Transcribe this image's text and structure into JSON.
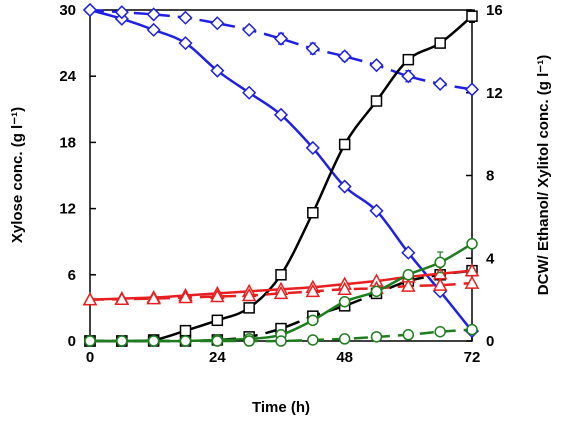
{
  "chart_data": {
    "type": "line",
    "xlabel": "Time (h)",
    "ylabel_left": "Xylose conc. (g l⁻¹)",
    "ylabel_right": "DCW/ Ethanol/ Xylitol conc. (g l⁻¹)",
    "xlim": [
      0,
      72
    ],
    "ylim_left": [
      0,
      30
    ],
    "ylim_right": [
      0,
      16
    ],
    "x_ticks": [
      "0",
      "24",
      "48",
      "72"
    ],
    "y_left_ticks": [
      "0",
      "6",
      "12",
      "18",
      "24",
      "30"
    ],
    "y_right_ticks": [
      "0",
      "4",
      "8",
      "12",
      "16"
    ],
    "grid": false,
    "series": [
      {
        "axis": "left",
        "marker": "diamond",
        "color": "#1f1fe6",
        "dash": "solid",
        "x": [
          0,
          6,
          12,
          18,
          24,
          30,
          36,
          42,
          48,
          54,
          60,
          66,
          72
        ],
        "y": [
          30,
          29.2,
          28.2,
          27,
          24.5,
          22.5,
          20.5,
          17.5,
          14,
          11.8,
          8,
          4.5,
          0.9
        ],
        "err": [
          0,
          0,
          0,
          0,
          0,
          0,
          0,
          0,
          0,
          0,
          0,
          0,
          0
        ]
      },
      {
        "axis": "left",
        "marker": "diamond",
        "color": "#1f1fe6",
        "dash": "dashed",
        "x": [
          0,
          6,
          12,
          18,
          24,
          30,
          36,
          42,
          48,
          54,
          60,
          66,
          72
        ],
        "y": [
          30,
          29.8,
          29.6,
          29.3,
          28.8,
          28.2,
          27.4,
          26.5,
          25.8,
          25,
          24,
          23.3,
          22.8
        ],
        "err": [
          0,
          0,
          0,
          0,
          0,
          0,
          0.5,
          0.5,
          0.4,
          0.3,
          0.5,
          0.3,
          0
        ]
      },
      {
        "axis": "right",
        "marker": "square",
        "color": "#000000",
        "dash": "solid",
        "x": [
          0,
          6,
          12,
          18,
          24,
          30,
          36,
          42,
          48,
          54,
          60,
          66,
          72
        ],
        "y": [
          0,
          0,
          0.05,
          0.5,
          1.0,
          1.6,
          3.2,
          6.2,
          9.5,
          11.6,
          13.6,
          14.4,
          15.7
        ],
        "err": [
          0,
          0,
          0,
          0,
          0,
          0,
          0,
          0,
          0,
          0,
          0,
          0.1,
          0.3
        ]
      },
      {
        "axis": "right",
        "marker": "square",
        "color": "#000000",
        "dash": "dashed",
        "x": [
          0,
          6,
          12,
          18,
          24,
          30,
          36,
          42,
          48,
          54,
          60,
          66,
          72
        ],
        "y": [
          0,
          0,
          0,
          0,
          0.05,
          0.2,
          0.6,
          1.2,
          1.7,
          2.3,
          2.9,
          3.2,
          3.4
        ],
        "err": [
          0,
          0,
          0,
          0,
          0,
          0,
          0,
          0,
          0,
          0,
          0,
          0,
          0
        ]
      },
      {
        "axis": "right",
        "marker": "triangle",
        "color": "#e62020",
        "dash": "solid",
        "x": [
          0,
          6,
          12,
          18,
          24,
          30,
          36,
          42,
          48,
          54,
          60,
          66,
          72
        ],
        "y": [
          2.0,
          2.05,
          2.1,
          2.2,
          2.3,
          2.4,
          2.5,
          2.6,
          2.75,
          2.9,
          3.1,
          3.25,
          3.4
        ],
        "err": [
          0,
          0,
          0,
          0,
          0,
          0,
          0,
          0,
          0,
          0,
          0,
          0,
          0
        ]
      },
      {
        "axis": "right",
        "marker": "triangle",
        "color": "#e62020",
        "dash": "dashed",
        "x": [
          0,
          6,
          12,
          18,
          24,
          30,
          36,
          42,
          48,
          54,
          60,
          66,
          72
        ],
        "y": [
          2.0,
          2.02,
          2.05,
          2.1,
          2.15,
          2.2,
          2.3,
          2.4,
          2.5,
          2.55,
          2.65,
          2.7,
          2.8
        ],
        "err": [
          0,
          0,
          0,
          0,
          0,
          0,
          0,
          0,
          0,
          0,
          0,
          0,
          0
        ]
      },
      {
        "axis": "right",
        "marker": "circle",
        "color": "#1e7d1e",
        "dash": "solid",
        "x": [
          0,
          6,
          12,
          18,
          24,
          30,
          36,
          42,
          48,
          54,
          60,
          66,
          72
        ],
        "y": [
          0,
          0,
          0,
          0,
          0.05,
          0.1,
          0.3,
          1.0,
          1.9,
          2.4,
          3.2,
          3.8,
          4.7
        ],
        "err": [
          0,
          0,
          0,
          0,
          0,
          0,
          0,
          0,
          0,
          0,
          0,
          0.5,
          0.2
        ]
      },
      {
        "axis": "right",
        "marker": "circle",
        "color": "#1e7d1e",
        "dash": "dashed",
        "x": [
          0,
          6,
          12,
          18,
          24,
          30,
          36,
          42,
          48,
          54,
          60,
          66,
          72
        ],
        "y": [
          0,
          0,
          0,
          0,
          0,
          0,
          0,
          0.05,
          0.1,
          0.2,
          0.3,
          0.45,
          0.55
        ],
        "err": [
          0,
          0,
          0,
          0,
          0,
          0,
          0,
          0,
          0,
          0,
          0,
          0,
          0
        ]
      }
    ]
  }
}
